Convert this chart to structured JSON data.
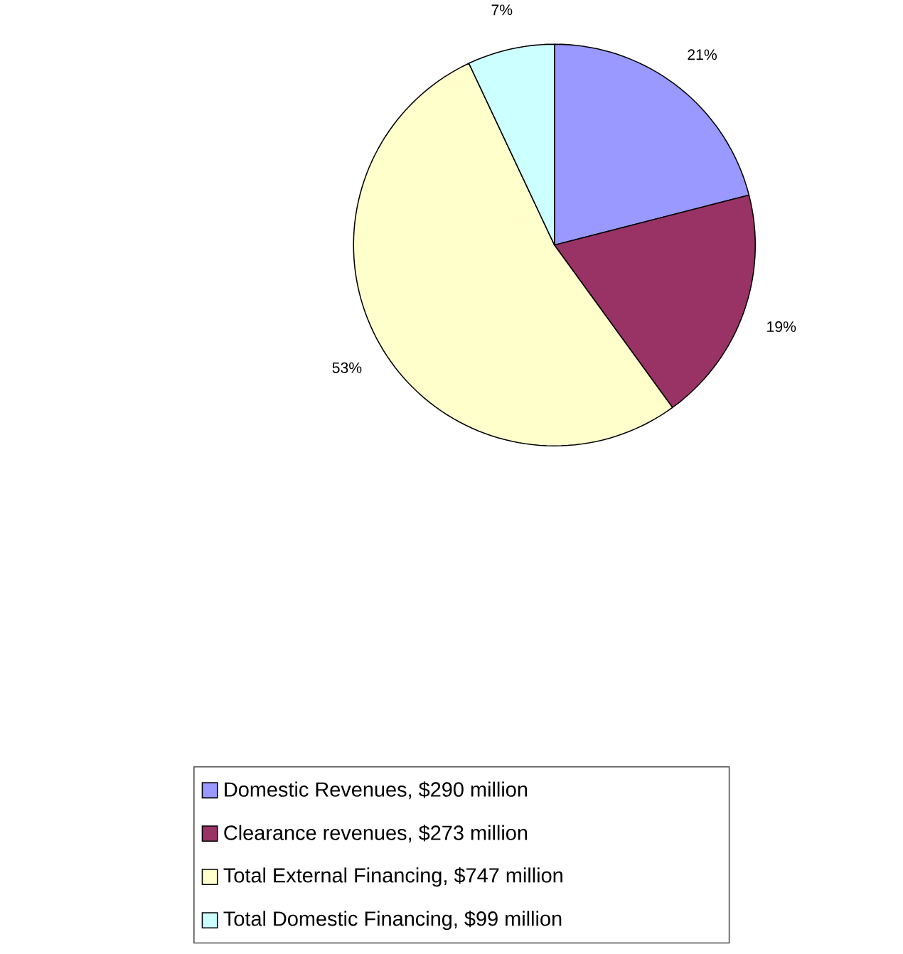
{
  "chart_data": {
    "type": "pie",
    "categories": [
      "Domestic Revenues, $290 million",
      "Clearance revenues, $273 million",
      "Total External Financing, $747 million",
      "Total Domestic Financing, $99 million"
    ],
    "values": [
      21,
      19,
      53,
      7
    ],
    "value_labels": [
      "21%",
      "19%",
      "53%",
      "7%"
    ],
    "colors": [
      "#9999ff",
      "#993366",
      "#ffffcc",
      "#ccffff"
    ],
    "legend": "bottom"
  }
}
